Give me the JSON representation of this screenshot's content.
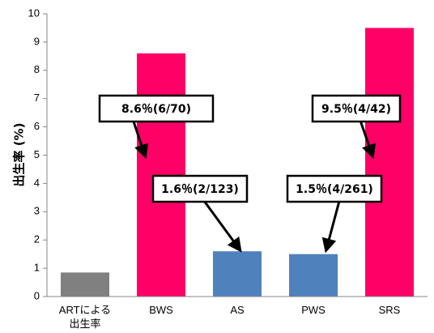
{
  "chart_data": {
    "type": "bar",
    "ylabel": "出生率 (%)",
    "ylim": [
      0,
      10
    ],
    "yticks": [
      0,
      1,
      2,
      3,
      4,
      5,
      6,
      7,
      8,
      9,
      10
    ],
    "grid": false,
    "categories": [
      "ARTによる\n出生率",
      "BWS",
      "AS",
      "PWS",
      "SRS"
    ],
    "values": [
      0.85,
      8.6,
      1.6,
      1.5,
      9.5
    ],
    "colors": [
      "#808080",
      "#ff0066",
      "#4f81bd",
      "#4f81bd",
      "#ff0066"
    ],
    "annotations": [
      {
        "text": "8.6％(6/70)",
        "category": "BWS"
      },
      {
        "text": "1.6％(2/123)",
        "category": "AS"
      },
      {
        "text": "1.5％(4/261)",
        "category": "PWS"
      },
      {
        "text": "9.5％(4/42)",
        "category": "SRS"
      }
    ]
  }
}
